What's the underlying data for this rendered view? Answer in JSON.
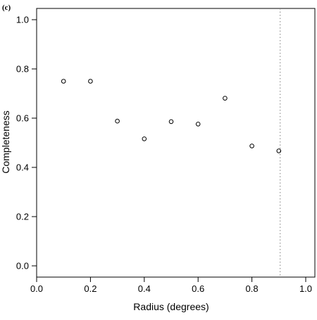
{
  "chart_data": {
    "type": "scatter",
    "panel_label": "(c)",
    "title": "",
    "xlabel": "Radius (degrees)",
    "ylabel": "Completeness",
    "xlim": [
      0.0,
      1.0
    ],
    "ylim": [
      0.0,
      1.0
    ],
    "x_ticks": [
      "0.0",
      "0.2",
      "0.4",
      "0.6",
      "0.8",
      "1.0"
    ],
    "y_ticks": [
      "0.0",
      "0.2",
      "0.4",
      "0.6",
      "0.8",
      "1.0"
    ],
    "grid": false,
    "legend": "none",
    "marker": "open-circle",
    "points": [
      {
        "x": 0.1,
        "y": 0.75
      },
      {
        "x": 0.2,
        "y": 0.75
      },
      {
        "x": 0.3,
        "y": 0.588
      },
      {
        "x": 0.4,
        "y": 0.516
      },
      {
        "x": 0.5,
        "y": 0.586
      },
      {
        "x": 0.6,
        "y": 0.576
      },
      {
        "x": 0.7,
        "y": 0.681
      },
      {
        "x": 0.8,
        "y": 0.487
      },
      {
        "x": 0.9,
        "y": 0.467
      }
    ],
    "reference_line": {
      "axis": "x",
      "value": 0.905,
      "style": "dotted",
      "color": "#808080"
    }
  }
}
